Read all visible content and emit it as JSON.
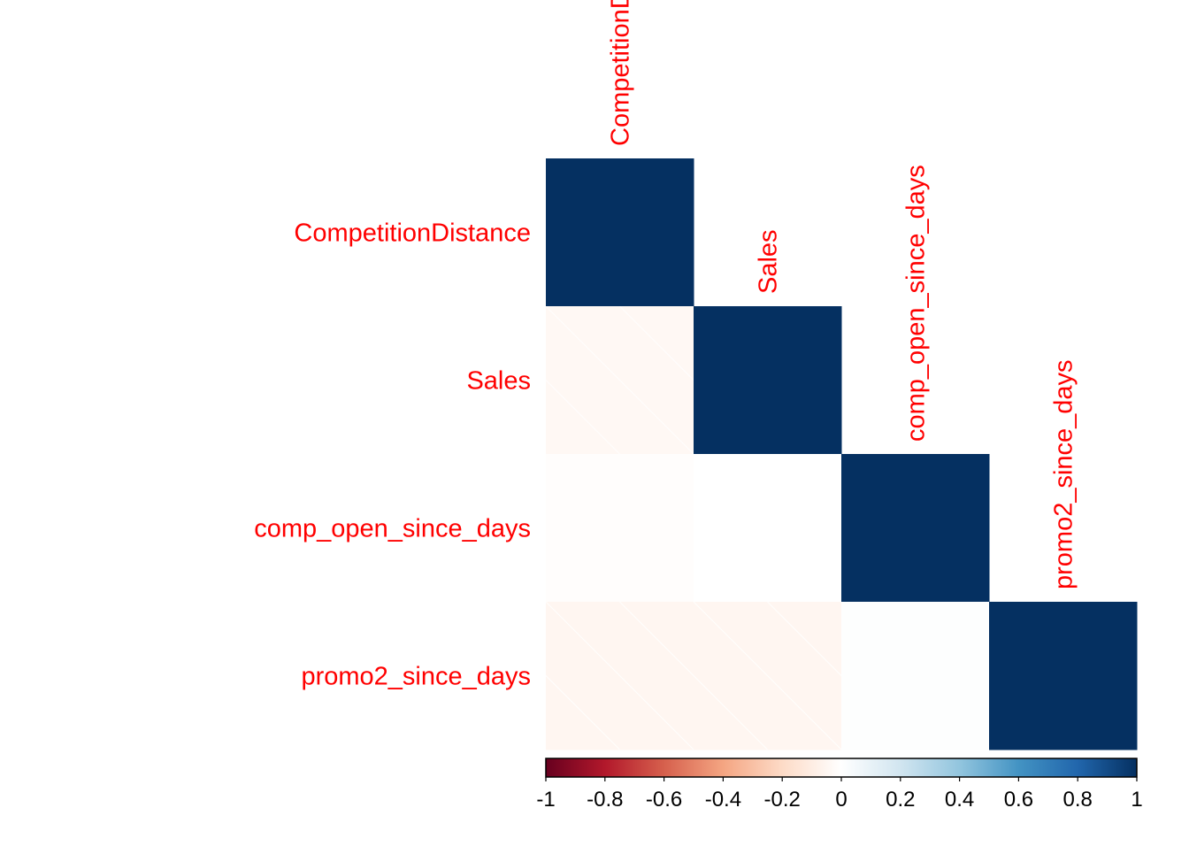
{
  "chart_data": {
    "type": "heatmap",
    "layout": "lower-triangular correlation matrix",
    "variables": [
      "CompetitionDistance",
      "Sales",
      "comp_open_since_days",
      "promo2_since_days"
    ],
    "matrix": [
      [
        1.0,
        null,
        null,
        null
      ],
      [
        -0.04,
        1.0,
        null,
        null
      ],
      [
        -0.01,
        0.0,
        1.0,
        null
      ],
      [
        -0.05,
        -0.05,
        0.01,
        1.0
      ]
    ],
    "hatched_cells": [
      [
        1,
        0
      ],
      [
        3,
        0
      ],
      [
        3,
        1
      ]
    ],
    "colorbar": {
      "range": [
        -1,
        1
      ],
      "tick_labels": [
        "-1",
        "-0.8",
        "-0.6",
        "-0.4",
        "-0.2",
        "0",
        "0.2",
        "0.4",
        "0.6",
        "0.8",
        "1"
      ],
      "placement": "bottom"
    },
    "colors": {
      "label": "#ff0000",
      "scale": [
        "#67001f",
        "#b2182b",
        "#d6604d",
        "#f4a582",
        "#fddbc7",
        "#ffffff",
        "#d1e5f0",
        "#92c5de",
        "#4393c3",
        "#2166ac",
        "#053061"
      ]
    }
  }
}
